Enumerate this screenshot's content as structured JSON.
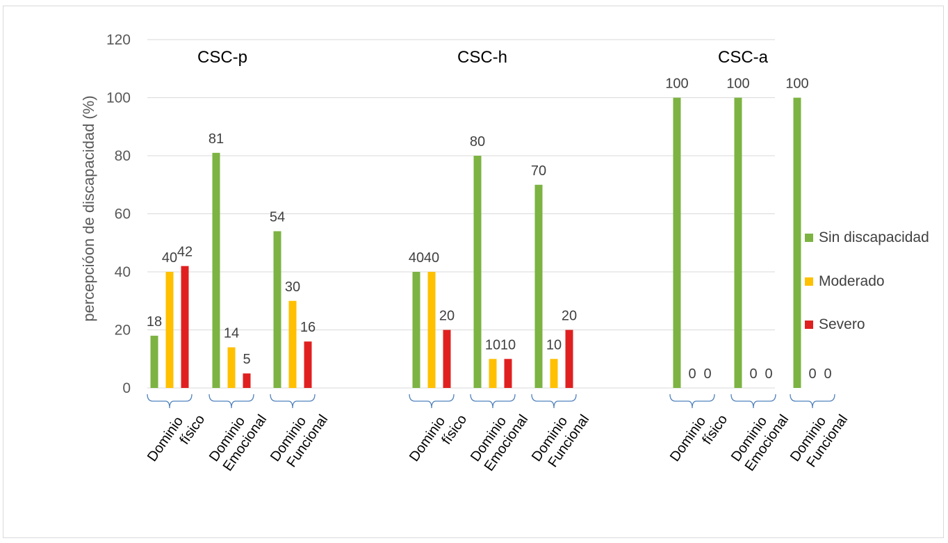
{
  "chart_data": {
    "type": "bar",
    "ylabel": "percepcióon de discapacidad (%)",
    "ylim": [
      0,
      120
    ],
    "yticks": [
      0,
      20,
      40,
      60,
      80,
      100,
      120
    ],
    "grid": true,
    "legend_position": "right",
    "series": [
      {
        "name": "Sin discapacidad",
        "color": "#7cb342"
      },
      {
        "name": "Moderado",
        "color": "#ffc000"
      },
      {
        "name": "Severo",
        "color": "#e02020"
      }
    ],
    "groups": [
      {
        "title": "CSC-p",
        "categories": [
          {
            "label": [
              "Dominio",
              "físico"
            ],
            "values": [
              18,
              40,
              42
            ],
            "labels": [
              "18",
              "40",
              "42"
            ]
          },
          {
            "label": [
              "Dominio",
              "Emocional"
            ],
            "values": [
              81,
              14,
              5
            ],
            "labels": [
              "81",
              "14",
              "5"
            ]
          },
          {
            "label": [
              "Dominio",
              "Funcional"
            ],
            "values": [
              54,
              30,
              16
            ],
            "labels": [
              "54",
              "30",
              "16"
            ]
          }
        ]
      },
      {
        "title": "CSC-h",
        "categories": [
          {
            "label": [
              "Dominio",
              "físico"
            ],
            "values": [
              40,
              40,
              20
            ],
            "labels": [
              "40",
              "40",
              "20"
            ]
          },
          {
            "label": [
              "Dominio",
              "Emocional"
            ],
            "values": [
              80,
              10,
              10
            ],
            "labels": [
              "80",
              "10",
              "10"
            ]
          },
          {
            "label": [
              "Dominio",
              "Funcional"
            ],
            "values": [
              70,
              10,
              20
            ],
            "labels": [
              "70",
              "10",
              "20"
            ]
          }
        ]
      },
      {
        "title": "CSC-a",
        "categories": [
          {
            "label": [
              "Dominio",
              "físico"
            ],
            "values": [
              100,
              0,
              0
            ],
            "labels": [
              "100",
              "0",
              "0"
            ]
          },
          {
            "label": [
              "Dominio",
              "Emocional"
            ],
            "values": [
              100,
              0,
              0
            ],
            "labels": [
              "100",
              "0",
              "0"
            ]
          },
          {
            "label": [
              "Dominio",
              "Funcional"
            ],
            "values": [
              100,
              0,
              0
            ],
            "labels": [
              "100",
              "0",
              "0"
            ]
          }
        ]
      }
    ]
  }
}
